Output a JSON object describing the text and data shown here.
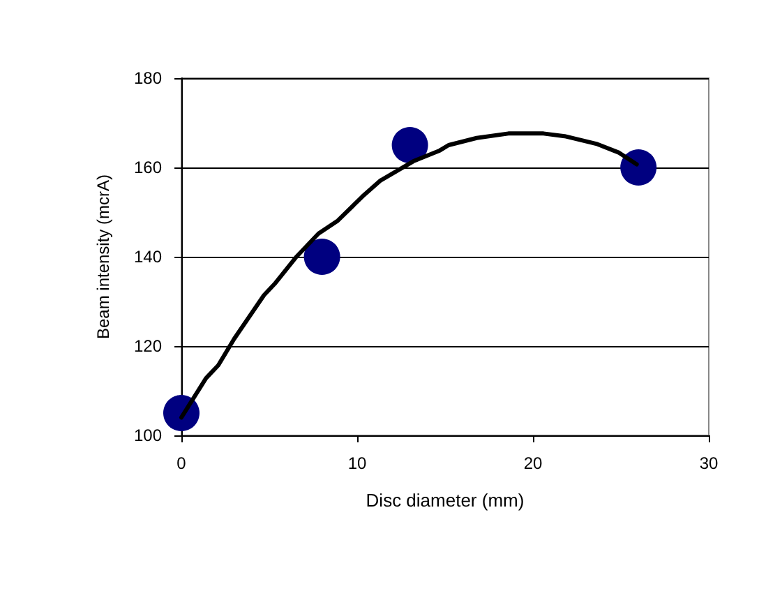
{
  "chart_data": {
    "type": "scatter",
    "xlabel": "Disc diameter (mm)",
    "ylabel": "Beam intensity (mcrA)",
    "xlim": [
      0,
      30
    ],
    "xticks": [
      0,
      10,
      20,
      30
    ],
    "ylim": [
      100,
      180
    ],
    "yticks": [
      100,
      120,
      140,
      160,
      180
    ],
    "grid": "y",
    "series": [
      {
        "color": "#000080",
        "marker": "circle",
        "x": [
          0,
          8,
          13,
          26
        ],
        "values": [
          105,
          140,
          165,
          160
        ]
      },
      {
        "type": "line",
        "color": "#000000",
        "marker": "none",
        "line_style": "solid",
        "x": [
          0,
          1.4,
          2.1,
          3,
          4.7,
          5.3,
          6.5,
          7.8,
          8.9,
          10.3,
          11.3,
          13.2,
          14.7,
          15.2,
          16.8,
          18.6,
          20.6,
          21.8,
          23.6,
          24.9,
          25.9
        ],
        "values": [
          104,
          112.8,
          115.7,
          121.6,
          131.4,
          133.9,
          139.8,
          145.2,
          148.1,
          153.5,
          157,
          161.4,
          163.8,
          165,
          166.6,
          167.6,
          167.6,
          167,
          165.3,
          163.3,
          160.7
        ]
      }
    ]
  }
}
